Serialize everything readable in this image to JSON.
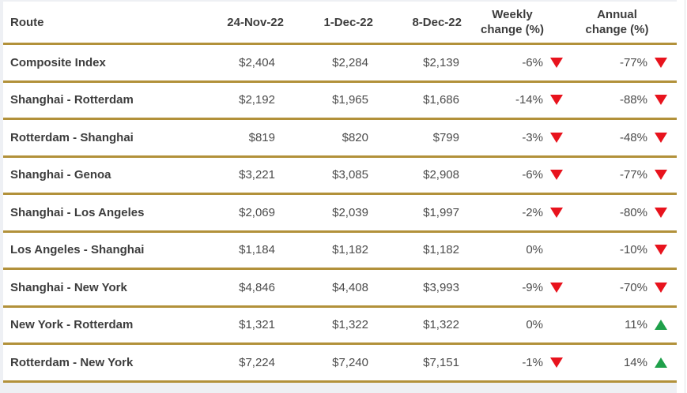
{
  "chart_data": {
    "type": "table",
    "columns": [
      "Route",
      "24-Nov-22",
      "1-Dec-22",
      "8-Dec-22",
      "Weekly change (%)",
      "Annual change (%)"
    ],
    "header": {
      "route": "Route",
      "col_nov24": "24-Nov-22",
      "col_dec1": "1-Dec-22",
      "col_dec8": "8-Dec-22",
      "weekly_line1": "Weekly",
      "weekly_line2": "change (%)",
      "annual_line1": "Annual",
      "annual_line2": "change (%)"
    },
    "rows": [
      {
        "route": "Composite Index",
        "nov24": "$2,404",
        "dec1": "$2,284",
        "dec8": "$2,139",
        "weekly": "-6%",
        "weekly_dir": "down",
        "annual": "-77%",
        "annual_dir": "down"
      },
      {
        "route": "Shanghai - Rotterdam",
        "nov24": "$2,192",
        "dec1": "$1,965",
        "dec8": "$1,686",
        "weekly": "-14%",
        "weekly_dir": "down",
        "annual": "-88%",
        "annual_dir": "down"
      },
      {
        "route": "Rotterdam - Shanghai",
        "nov24": "$819",
        "dec1": "$820",
        "dec8": "$799",
        "weekly": "-3%",
        "weekly_dir": "down",
        "annual": "-48%",
        "annual_dir": "down"
      },
      {
        "route": "Shanghai - Genoa",
        "nov24": "$3,221",
        "dec1": "$3,085",
        "dec8": "$2,908",
        "weekly": "-6%",
        "weekly_dir": "down",
        "annual": "-77%",
        "annual_dir": "down"
      },
      {
        "route": "Shanghai - Los Angeles",
        "nov24": "$2,069",
        "dec1": "$2,039",
        "dec8": "$1,997",
        "weekly": "-2%",
        "weekly_dir": "down",
        "annual": "-80%",
        "annual_dir": "down"
      },
      {
        "route": "Los Angeles - Shanghai",
        "nov24": "$1,184",
        "dec1": "$1,182",
        "dec8": "$1,182",
        "weekly": "0%",
        "weekly_dir": "none",
        "annual": "-10%",
        "annual_dir": "down"
      },
      {
        "route": "Shanghai - New York",
        "nov24": "$4,846",
        "dec1": "$4,408",
        "dec8": "$3,993",
        "weekly": "-9%",
        "weekly_dir": "down",
        "annual": "-70%",
        "annual_dir": "down"
      },
      {
        "route": "New York - Rotterdam",
        "nov24": "$1,321",
        "dec1": "$1,322",
        "dec8": "$1,322",
        "weekly": "0%",
        "weekly_dir": "none",
        "annual": "11%",
        "annual_dir": "up"
      },
      {
        "route": "Rotterdam - New York",
        "nov24": "$7,224",
        "dec1": "$7,240",
        "dec8": "$7,151",
        "weekly": "-1%",
        "weekly_dir": "down",
        "annual": "14%",
        "annual_dir": "up"
      }
    ]
  },
  "colors": {
    "border_gold": "#b2913a",
    "header_text": "#3d3d3d",
    "value_text": "#4c4c4c",
    "arrow_down_red": "#e8131d",
    "arrow_up_green": "#1fa04a",
    "page_background": "#eef0f4",
    "table_background": "#ffffff"
  }
}
